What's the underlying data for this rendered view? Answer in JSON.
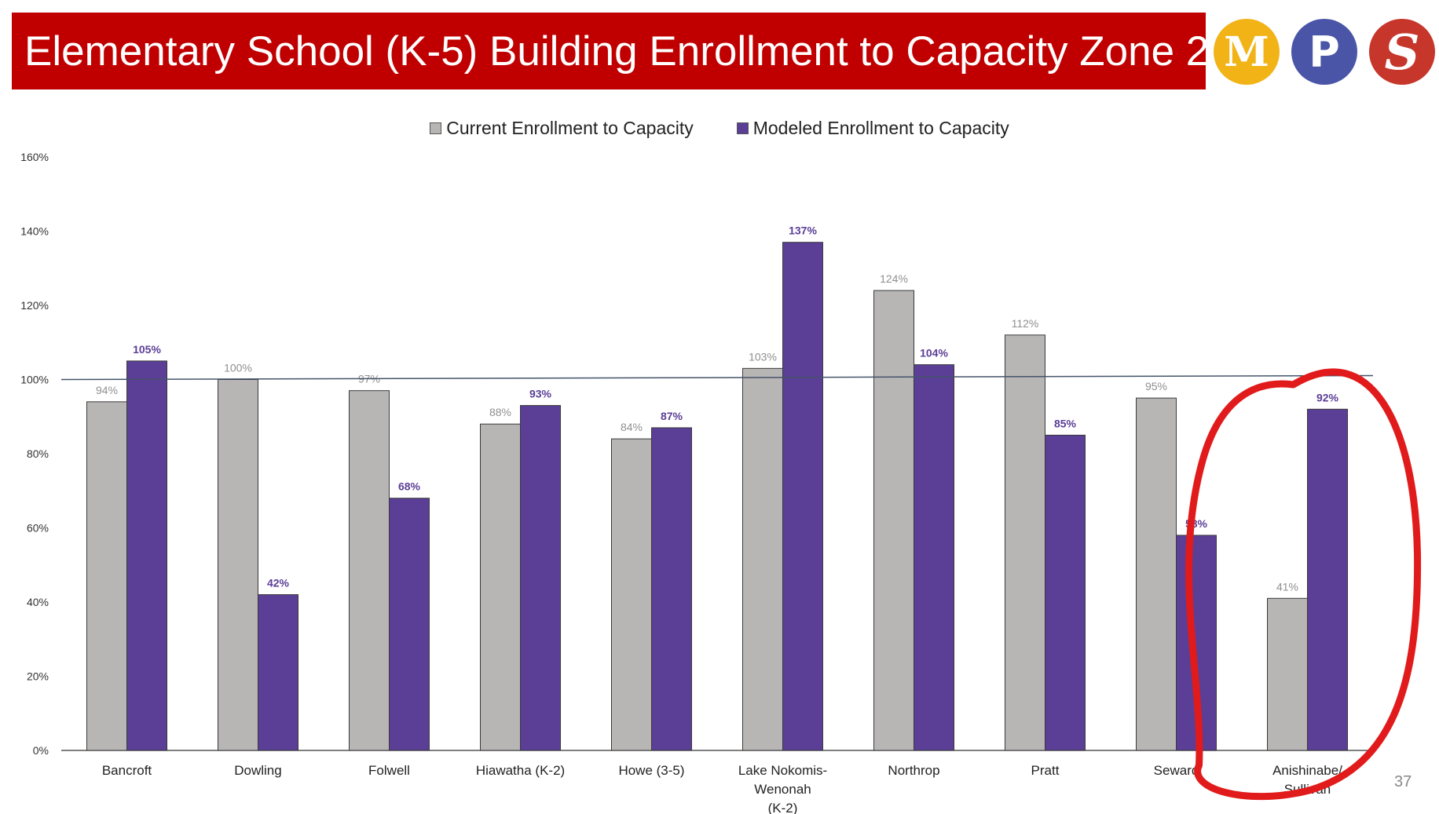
{
  "header": {
    "title": "Elementary School (K-5) Building Enrollment to Capacity Zone 2"
  },
  "logos": [
    {
      "letter": "M",
      "icon": "m-logo-icon",
      "color": "#f2b317"
    },
    {
      "letter": "P",
      "icon": "p-logo-icon",
      "color": "#4a55a8"
    },
    {
      "letter": "S",
      "icon": "s-logo-icon",
      "color": "#c6362b"
    }
  ],
  "page_number": "37",
  "colors": {
    "current": "#b8b5b5",
    "modeled": "#5b3e96",
    "header": "#c00000",
    "annotation": "#e11b1b"
  },
  "chart_data": {
    "type": "bar",
    "title": "",
    "xlabel": "",
    "ylabel": "",
    "ylim": [
      0,
      160
    ],
    "yticks": [
      "0%",
      "20%",
      "40%",
      "60%",
      "80%",
      "100%",
      "120%",
      "140%",
      "160%"
    ],
    "reference_line": 100,
    "grid": false,
    "legend_position": "top-center",
    "categories": [
      "Bancroft",
      "Dowling",
      "Folwell",
      "Hiawatha (K-2)",
      "Howe (3-5)",
      "Lake Nokomis-\nWenonah\n(K-2)",
      "Northrop",
      "Pratt",
      "Seward",
      "Anishinabe/\nSullivan"
    ],
    "series": [
      {
        "name": "Current Enrollment to Capacity",
        "values": [
          94,
          100,
          97,
          88,
          84,
          103,
          124,
          112,
          95,
          41
        ],
        "labels": [
          "94%",
          "100%",
          "97%",
          "88%",
          "84%",
          "103%",
          "124%",
          "112%",
          "95%",
          "41%"
        ]
      },
      {
        "name": "Modeled Enrollment to Capacity",
        "values": [
          105,
          42,
          68,
          93,
          87,
          137,
          104,
          85,
          58,
          92
        ],
        "labels": [
          "105%",
          "42%",
          "68%",
          "93%",
          "87%",
          "137%",
          "104%",
          "85%",
          "58%",
          "92%"
        ]
      }
    ],
    "annotation": {
      "type": "hand-drawn-circle",
      "target_category": "Anishinabe/\nSullivan",
      "color": "#e11b1b"
    }
  }
}
